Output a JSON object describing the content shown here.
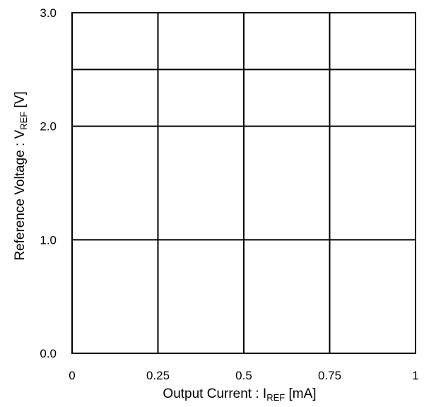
{
  "chart_data": {
    "type": "line",
    "title": "",
    "xlabel": {
      "prefix": "Output Current : I",
      "subscript": "REF",
      "suffix": " [mA]"
    },
    "ylabel": {
      "prefix": "Reference Voltage : V",
      "subscript": "REF",
      "suffix": " [V]"
    },
    "xlim": [
      0,
      1
    ],
    "ylim": [
      0,
      3
    ],
    "x_ticks": [
      {
        "value": 0,
        "label": "0"
      },
      {
        "value": 0.25,
        "label": "0.25"
      },
      {
        "value": 0.5,
        "label": "0.5"
      },
      {
        "value": 0.75,
        "label": "0.75"
      },
      {
        "value": 1,
        "label": "1"
      }
    ],
    "y_ticks": [
      {
        "value": 0,
        "label": "0.0"
      },
      {
        "value": 1,
        "label": "1.0"
      },
      {
        "value": 2,
        "label": "2.0"
      },
      {
        "value": 3,
        "label": "3.0"
      }
    ],
    "y_gridlines": [
      0,
      1,
      2,
      2.5,
      3
    ],
    "x_gridlines": [
      0,
      0.25,
      0.5,
      0.75,
      1
    ],
    "grid": true,
    "series": []
  }
}
